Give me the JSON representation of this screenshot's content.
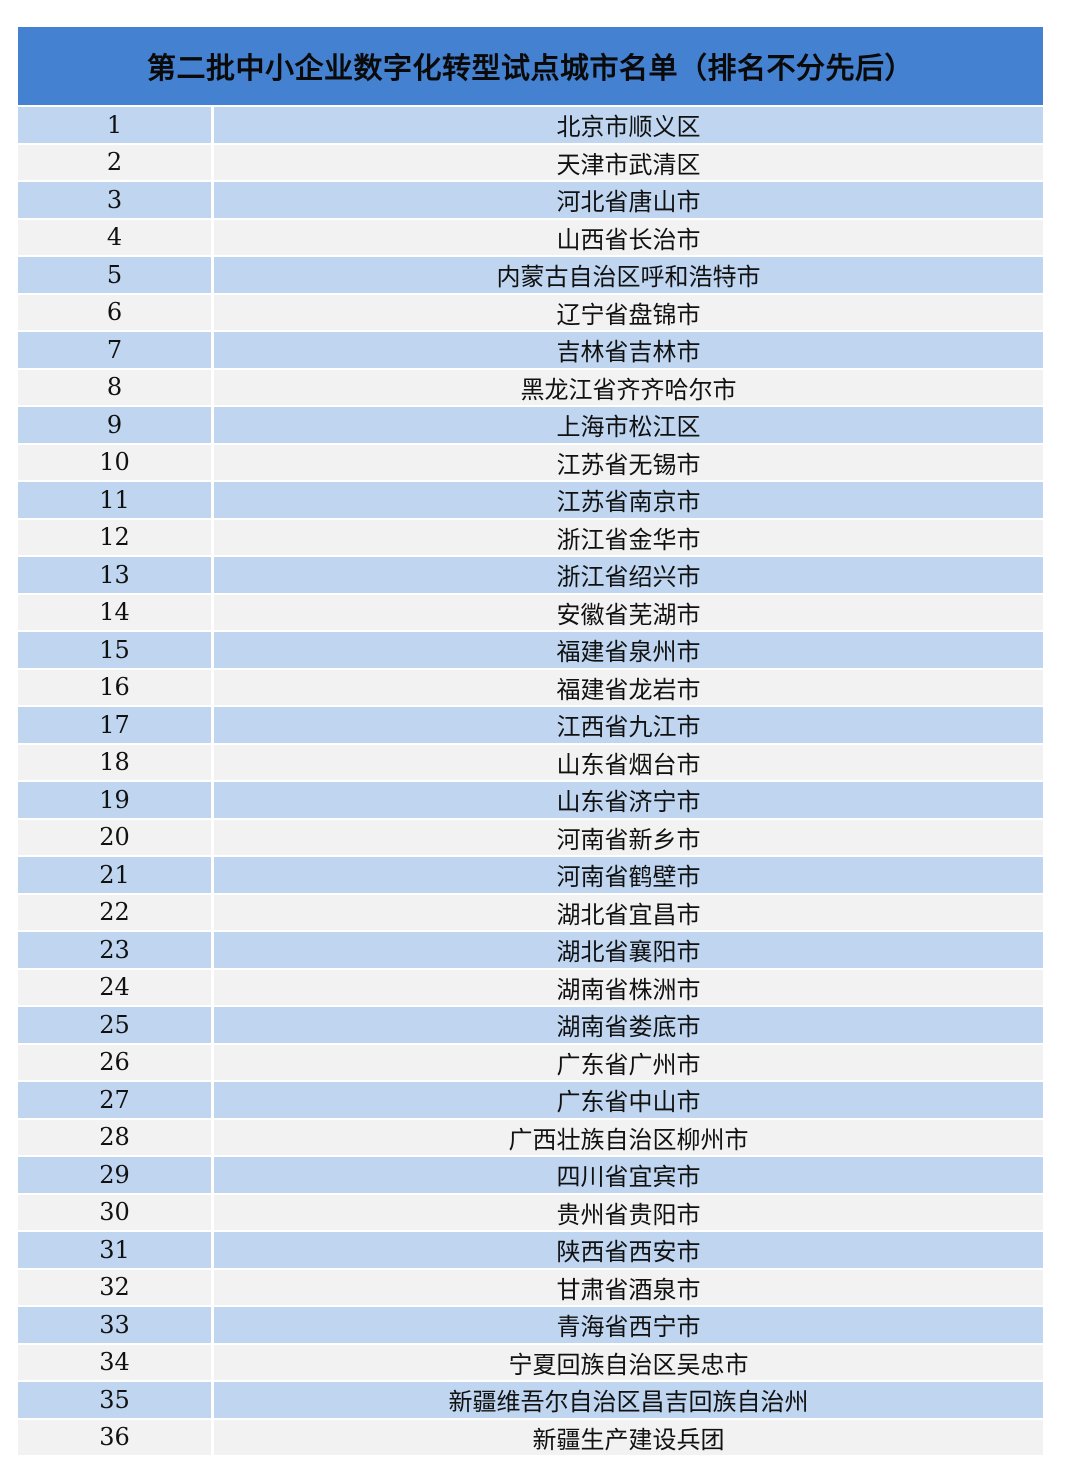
{
  "title": "第二批中小企业数字化转型试点城市名单（排名不分先后）",
  "rows": [
    {
      "no": "1",
      "city": "北京市顺义区"
    },
    {
      "no": "2",
      "city": "天津市武清区"
    },
    {
      "no": "3",
      "city": "河北省唐山市"
    },
    {
      "no": "4",
      "city": "山西省长治市"
    },
    {
      "no": "5",
      "city": "内蒙古自治区呼和浩特市"
    },
    {
      "no": "6",
      "city": "辽宁省盘锦市"
    },
    {
      "no": "7",
      "city": "吉林省吉林市"
    },
    {
      "no": "8",
      "city": "黑龙江省齐齐哈尔市"
    },
    {
      "no": "9",
      "city": "上海市松江区"
    },
    {
      "no": "10",
      "city": "江苏省无锡市"
    },
    {
      "no": "11",
      "city": "江苏省南京市"
    },
    {
      "no": "12",
      "city": "浙江省金华市"
    },
    {
      "no": "13",
      "city": "浙江省绍兴市"
    },
    {
      "no": "14",
      "city": "安徽省芜湖市"
    },
    {
      "no": "15",
      "city": "福建省泉州市"
    },
    {
      "no": "16",
      "city": "福建省龙岩市"
    },
    {
      "no": "17",
      "city": "江西省九江市"
    },
    {
      "no": "18",
      "city": "山东省烟台市"
    },
    {
      "no": "19",
      "city": "山东省济宁市"
    },
    {
      "no": "20",
      "city": "河南省新乡市"
    },
    {
      "no": "21",
      "city": "河南省鹤壁市"
    },
    {
      "no": "22",
      "city": "湖北省宜昌市"
    },
    {
      "no": "23",
      "city": "湖北省襄阳市"
    },
    {
      "no": "24",
      "city": "湖南省株洲市"
    },
    {
      "no": "25",
      "city": "湖南省娄底市"
    },
    {
      "no": "26",
      "city": "广东省广州市"
    },
    {
      "no": "27",
      "city": "广东省中山市"
    },
    {
      "no": "28",
      "city": "广西壮族自治区柳州市"
    },
    {
      "no": "29",
      "city": "四川省宜宾市"
    },
    {
      "no": "30",
      "city": "贵州省贵阳市"
    },
    {
      "no": "31",
      "city": "陕西省西安市"
    },
    {
      "no": "32",
      "city": "甘肃省酒泉市"
    },
    {
      "no": "33",
      "city": "青海省西宁市"
    },
    {
      "no": "34",
      "city": "宁夏回族自治区吴忠市"
    },
    {
      "no": "35",
      "city": "新疆维吾尔自治区昌吉回族自治州"
    },
    {
      "no": "36",
      "city": "新疆生产建设兵团"
    }
  ],
  "colors": {
    "header": "#4581d1",
    "row_odd": "#bfd5f0",
    "row_even": "#f2f2f2"
  }
}
